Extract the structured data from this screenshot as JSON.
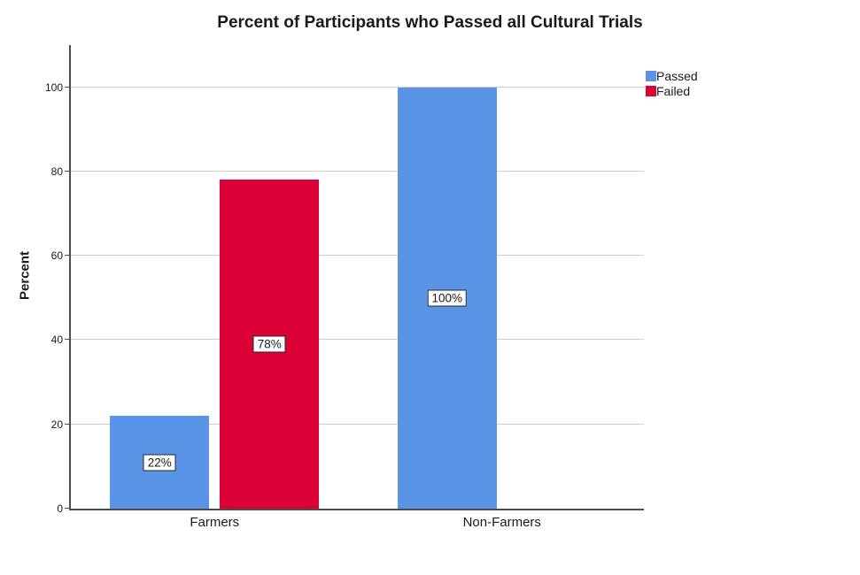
{
  "chart_data": {
    "type": "bar",
    "title": "Percent of Participants who Passed all Cultural Trials",
    "ylabel": "Percent",
    "xlabel": "",
    "categories": [
      "Farmers",
      "Non-Farmers"
    ],
    "series": [
      {
        "name": "Passed",
        "color": "#5A94E6",
        "values": [
          22,
          100
        ],
        "labels": [
          "22%",
          "100%"
        ]
      },
      {
        "name": "Failed",
        "color": "#DB0036",
        "values": [
          78,
          0
        ],
        "labels": [
          "78%",
          null
        ]
      }
    ],
    "yticks": [
      0,
      20,
      40,
      60,
      80,
      100
    ],
    "ylim": [
      0,
      110
    ],
    "grid": true,
    "gridline_color": "#cdcdcd",
    "axis_color": "#4d4d4d",
    "background_color": "#ffffff",
    "legend_position": "top-right",
    "bar_label_box": {
      "background": "#ffffff",
      "border": "#262626"
    }
  }
}
